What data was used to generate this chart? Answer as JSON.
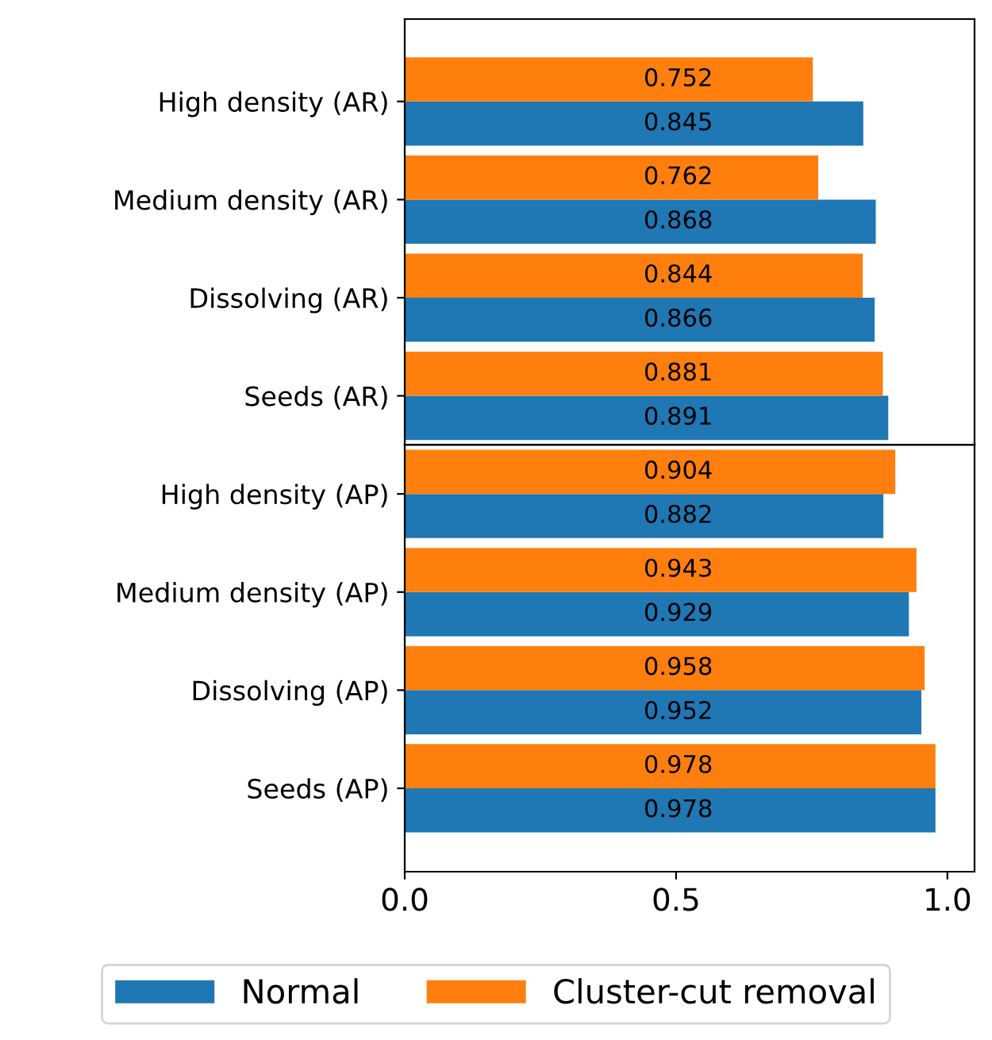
{
  "chart_data": [
    {
      "type": "bar",
      "orientation": "horizontal",
      "categories": [
        "High density (AR)",
        "Medium density (AR)",
        "Dissolving (AR)",
        "Seeds (AR)"
      ],
      "series": [
        {
          "name": "Normal",
          "color": "#1f77b4",
          "values": [
            0.845,
            0.868,
            0.866,
            0.891
          ]
        },
        {
          "name": "Cluster-cut removal",
          "color": "#ff7f0e",
          "values": [
            0.752,
            0.762,
            0.844,
            0.881
          ]
        }
      ],
      "xlim": [
        0,
        1.05
      ],
      "tick_labels": "y",
      "data_labels": true,
      "legend": "bottom"
    },
    {
      "type": "bar",
      "orientation": "horizontal",
      "categories": [
        "High density (AP)",
        "Medium density (AP)",
        "Dissolving (AP)",
        "Seeds (AP)"
      ],
      "series": [
        {
          "color": "#1f77b4",
          "values": [
            0.882,
            0.929,
            0.952,
            0.978
          ]
        },
        {
          "color": "#ff7f0e",
          "values": [
            0.904,
            0.943,
            0.958,
            0.978
          ]
        }
      ],
      "xlim": [
        0,
        1.05
      ],
      "xticks": [
        {
          "value": 0,
          "label": "0.0"
        },
        {
          "value": 0.5,
          "label": "0.5"
        },
        {
          "value": 1,
          "label": "1.0"
        }
      ],
      "data_labels": true
    }
  ]
}
